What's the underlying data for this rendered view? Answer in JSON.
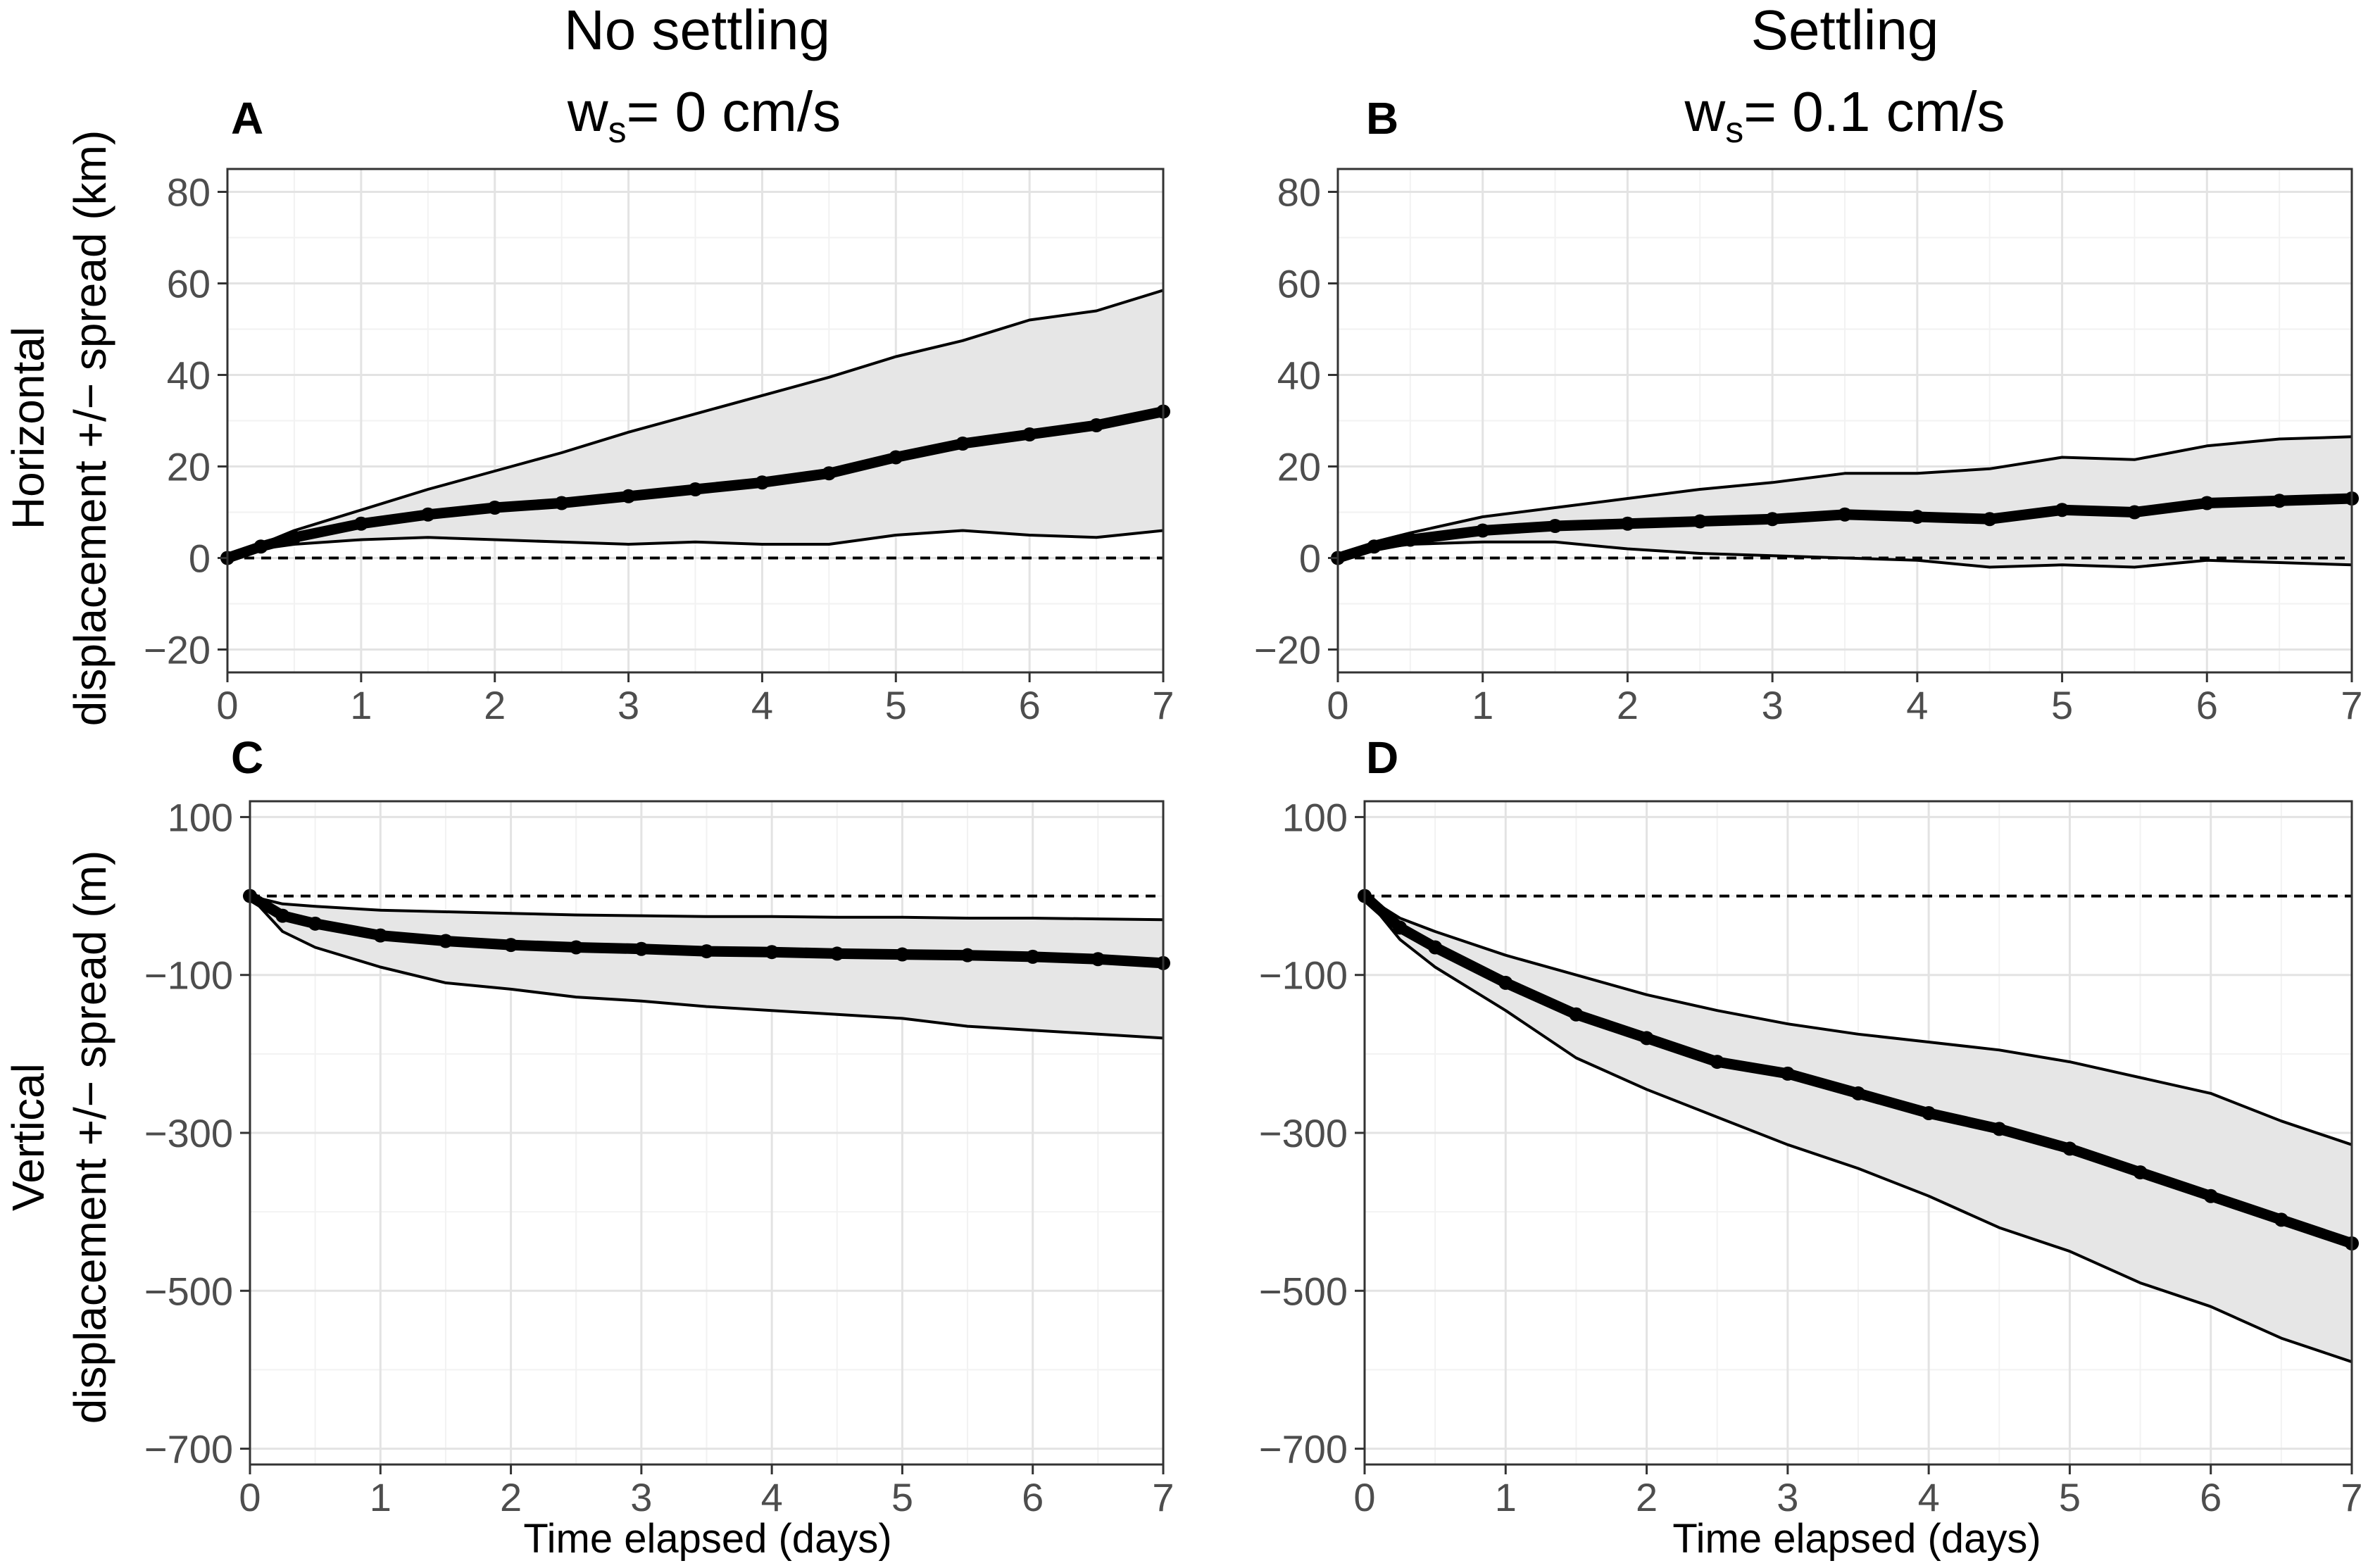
{
  "figure": {
    "col_headers": [
      "No settling",
      "Settling"
    ],
    "ws_labels": [
      {
        "main": "w",
        "sub": "s",
        "rest": "= 0 cm/s"
      },
      {
        "main": "w",
        "sub": "s",
        "rest": "= 0.1 cm/s"
      }
    ],
    "row_labels": [
      {
        "line1": "Horizontal",
        "line2": "displacement +/− spread (km)"
      },
      {
        "line1": "Vertical",
        "line2": "displacement +/− spread (m)"
      }
    ],
    "xlabel": "Time elapsed (days)"
  },
  "colors": {
    "ribbon": "#e6e6e6",
    "line": "#000000",
    "grid_major": "#e3e3e3",
    "grid_minor": "#f2f2f2",
    "text": "#000000",
    "tick": "#4d4d4d"
  },
  "chart_data": [
    {
      "panel": "A",
      "type": "line",
      "title": "No settling, ws = 0 cm/s",
      "xlabel": "Time elapsed (days)",
      "ylabel": "Horizontal displacement +/− spread (km)",
      "xlim": [
        0,
        7
      ],
      "ylim": [
        -25,
        85
      ],
      "xticks": [
        0,
        1,
        2,
        3,
        4,
        5,
        6,
        7
      ],
      "yticks": [
        -20,
        0,
        20,
        40,
        60,
        80
      ],
      "ytick_labels": [
        "−20",
        "0",
        "20",
        "40",
        "60",
        "80"
      ],
      "reference_line": 0,
      "x": [
        0,
        0.25,
        0.5,
        1,
        1.5,
        2,
        2.5,
        3,
        3.5,
        4,
        4.5,
        5,
        5.5,
        6,
        6.5,
        7
      ],
      "series": [
        {
          "name": "mean",
          "values": [
            0,
            2.5,
            4.5,
            7.5,
            9.5,
            11,
            12,
            13.5,
            15,
            16.5,
            18.5,
            22,
            25,
            27,
            29,
            32
          ]
        },
        {
          "name": "upper",
          "values": [
            0,
            3,
            6,
            10.5,
            15,
            19,
            23,
            27.5,
            31.5,
            35.5,
            39.5,
            44,
            47.5,
            52,
            54,
            58.5
          ]
        },
        {
          "name": "lower",
          "values": [
            0,
            2,
            3,
            4,
            4.5,
            4,
            3.5,
            3,
            3.5,
            3,
            3,
            5,
            6,
            5,
            4.5,
            6
          ]
        }
      ]
    },
    {
      "panel": "B",
      "type": "line",
      "title": "Settling, ws = 0.1 cm/s",
      "xlabel": "Time elapsed (days)",
      "ylabel": "Horizontal displacement +/− spread (km)",
      "xlim": [
        0,
        7
      ],
      "ylim": [
        -25,
        85
      ],
      "xticks": [
        0,
        1,
        2,
        3,
        4,
        5,
        6,
        7
      ],
      "yticks": [
        -20,
        0,
        20,
        40,
        60,
        80
      ],
      "ytick_labels": [
        "−20",
        "0",
        "20",
        "40",
        "60",
        "80"
      ],
      "reference_line": 0,
      "x": [
        0,
        0.25,
        0.5,
        1,
        1.5,
        2,
        2.5,
        3,
        3.5,
        4,
        4.5,
        5,
        5.5,
        6,
        6.5,
        7
      ],
      "series": [
        {
          "name": "mean",
          "values": [
            0,
            2.5,
            4,
            6,
            7,
            7.5,
            8,
            8.5,
            9.5,
            9,
            8.5,
            10.5,
            10,
            12,
            12.5,
            13
          ]
        },
        {
          "name": "upper",
          "values": [
            0,
            3.5,
            5.5,
            9,
            11,
            13,
            15,
            16.5,
            18.5,
            18.5,
            19.5,
            22,
            21.5,
            24.5,
            26,
            26.5
          ]
        },
        {
          "name": "lower",
          "values": [
            0,
            2,
            3,
            3.5,
            3.5,
            2,
            1,
            0.5,
            0,
            -0.5,
            -2,
            -1.5,
            -2,
            -0.5,
            -1,
            -1.5
          ]
        }
      ]
    },
    {
      "panel": "C",
      "type": "line",
      "title": "No settling, ws = 0 cm/s",
      "xlabel": "Time elapsed (days)",
      "ylabel": "Vertical displacement +/− spread (m)",
      "xlim": [
        0,
        7
      ],
      "ylim": [
        -720,
        120
      ],
      "xticks": [
        0,
        1,
        2,
        3,
        4,
        5,
        6,
        7
      ],
      "yticks": [
        -700,
        -500,
        -300,
        -100,
        100
      ],
      "ytick_labels": [
        "−700",
        "−500",
        "−300",
        "−100",
        "100"
      ],
      "reference_line": 0,
      "x": [
        0,
        0.25,
        0.5,
        1,
        1.5,
        2,
        2.5,
        3,
        3.5,
        4,
        4.5,
        5,
        5.5,
        6,
        6.5,
        7
      ],
      "series": [
        {
          "name": "mean",
          "values": [
            0,
            -25,
            -35,
            -50,
            -57,
            -62,
            -65,
            -67,
            -70,
            -71,
            -73,
            -74,
            -75,
            -77,
            -80,
            -85
          ]
        },
        {
          "name": "upper",
          "values": [
            0,
            -10,
            -13,
            -18,
            -20,
            -22,
            -24,
            -25,
            -26,
            -26,
            -27,
            -27,
            -28,
            -28,
            -29,
            -30
          ]
        },
        {
          "name": "lower",
          "values": [
            0,
            -45,
            -65,
            -90,
            -110,
            -118,
            -128,
            -133,
            -140,
            -145,
            -150,
            -155,
            -165,
            -170,
            -175,
            -180
          ]
        }
      ]
    },
    {
      "panel": "D",
      "type": "line",
      "title": "Settling, ws = 0.1 cm/s",
      "xlabel": "Time elapsed (days)",
      "ylabel": "Vertical displacement +/− spread (m)",
      "xlim": [
        0,
        7
      ],
      "ylim": [
        -720,
        120
      ],
      "xticks": [
        0,
        1,
        2,
        3,
        4,
        5,
        6,
        7
      ],
      "yticks": [
        -700,
        -500,
        -300,
        -100,
        100
      ],
      "ytick_labels": [
        "−700",
        "−500",
        "−300",
        "−100",
        "100"
      ],
      "reference_line": 0,
      "x": [
        0,
        0.25,
        0.5,
        1,
        1.5,
        2,
        2.5,
        3,
        3.5,
        4,
        4.5,
        5,
        5.5,
        6,
        6.5,
        7
      ],
      "series": [
        {
          "name": "mean",
          "values": [
            0,
            -40,
            -65,
            -110,
            -150,
            -180,
            -210,
            -225,
            -250,
            -275,
            -295,
            -320,
            -350,
            -380,
            -410,
            -440
          ]
        },
        {
          "name": "upper",
          "values": [
            0,
            -28,
            -45,
            -75,
            -100,
            -125,
            -145,
            -162,
            -175,
            -185,
            -195,
            -210,
            -230,
            -250,
            -285,
            -315
          ]
        },
        {
          "name": "lower",
          "values": [
            0,
            -55,
            -90,
            -145,
            -205,
            -245,
            -280,
            -315,
            -345,
            -380,
            -420,
            -450,
            -490,
            -520,
            -560,
            -590
          ]
        }
      ]
    }
  ]
}
